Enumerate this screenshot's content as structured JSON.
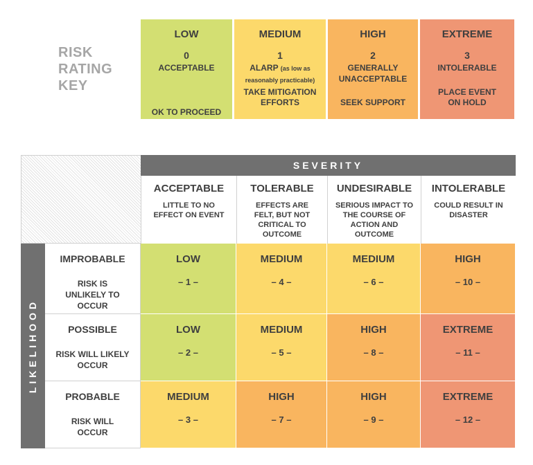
{
  "key": {
    "title_lines": [
      "RISK",
      "RATING",
      "KEY"
    ],
    "boxes": [
      {
        "level": "LOW",
        "number": "0",
        "desc": "ACCEPTABLE",
        "desc_small": "",
        "desc2": "",
        "action": "OK TO PROCEED",
        "color": "#d3df72"
      },
      {
        "level": "MEDIUM",
        "number": "1",
        "desc": "ALARP ",
        "desc_small": "(as low as reasonably practicable)",
        "desc2": "",
        "action": "TAKE MITIGATION EFFORTS",
        "color": "#fcd96b"
      },
      {
        "level": "HIGH",
        "number": "2",
        "desc": "GENERALLY",
        "desc_small": "",
        "desc2": "UNACCEPTABLE",
        "action": "SEEK SUPPORT",
        "color": "#f9b55f"
      },
      {
        "level": "EXTREME",
        "number": "3",
        "desc": "INTOLERABLE",
        "desc_small": "",
        "desc2": "",
        "action": "PLACE EVENT ON HOLD",
        "color": "#ef9674"
      }
    ]
  },
  "matrix": {
    "severity_label": "SEVERITY",
    "likelihood_label": "LIKELIHOOD",
    "severity": [
      {
        "title": "ACCEPTABLE",
        "desc": "LITTLE TO NO EFFECT ON EVENT"
      },
      {
        "title": "TOLERABLE",
        "desc": "EFFECTS ARE FELT, BUT NOT CRITICAL TO OUTCOME"
      },
      {
        "title": "UNDESIRABLE",
        "desc": "SERIOUS IMPACT TO THE COURSE OF ACTION AND OUTCOME"
      },
      {
        "title": "INTOLERABLE",
        "desc": "COULD RESULT IN DISASTER"
      }
    ],
    "likelihood": [
      {
        "title": "IMPROBABLE",
        "desc": "RISK IS UNLIKELY TO OCCUR"
      },
      {
        "title": "POSSIBLE",
        "desc": "RISK WILL LIKELY OCCUR"
      },
      {
        "title": "PROBABLE",
        "desc": "RISK WILL OCCUR"
      }
    ],
    "cells": [
      [
        {
          "level": "LOW",
          "num": "– 1 –",
          "color": "#d3df72"
        },
        {
          "level": "MEDIUM",
          "num": "– 4 –",
          "color": "#fcd96b"
        },
        {
          "level": "MEDIUM",
          "num": "– 6 –",
          "color": "#fcd96b"
        },
        {
          "level": "HIGH",
          "num": "– 10 –",
          "color": "#f9b55f"
        }
      ],
      [
        {
          "level": "LOW",
          "num": "– 2 –",
          "color": "#d3df72"
        },
        {
          "level": "MEDIUM",
          "num": "– 5 –",
          "color": "#fcd96b"
        },
        {
          "level": "HIGH",
          "num": "– 8 –",
          "color": "#f9b55f"
        },
        {
          "level": "EXTREME",
          "num": "– 11 –",
          "color": "#ef9674"
        }
      ],
      [
        {
          "level": "MEDIUM",
          "num": "– 3 –",
          "color": "#fcd96b"
        },
        {
          "level": "HIGH",
          "num": "– 7 –",
          "color": "#f9b55f"
        },
        {
          "level": "HIGH",
          "num": "– 9 –",
          "color": "#f9b55f"
        },
        {
          "level": "EXTREME",
          "num": "– 12 –",
          "color": "#ef9674"
        }
      ]
    ]
  }
}
